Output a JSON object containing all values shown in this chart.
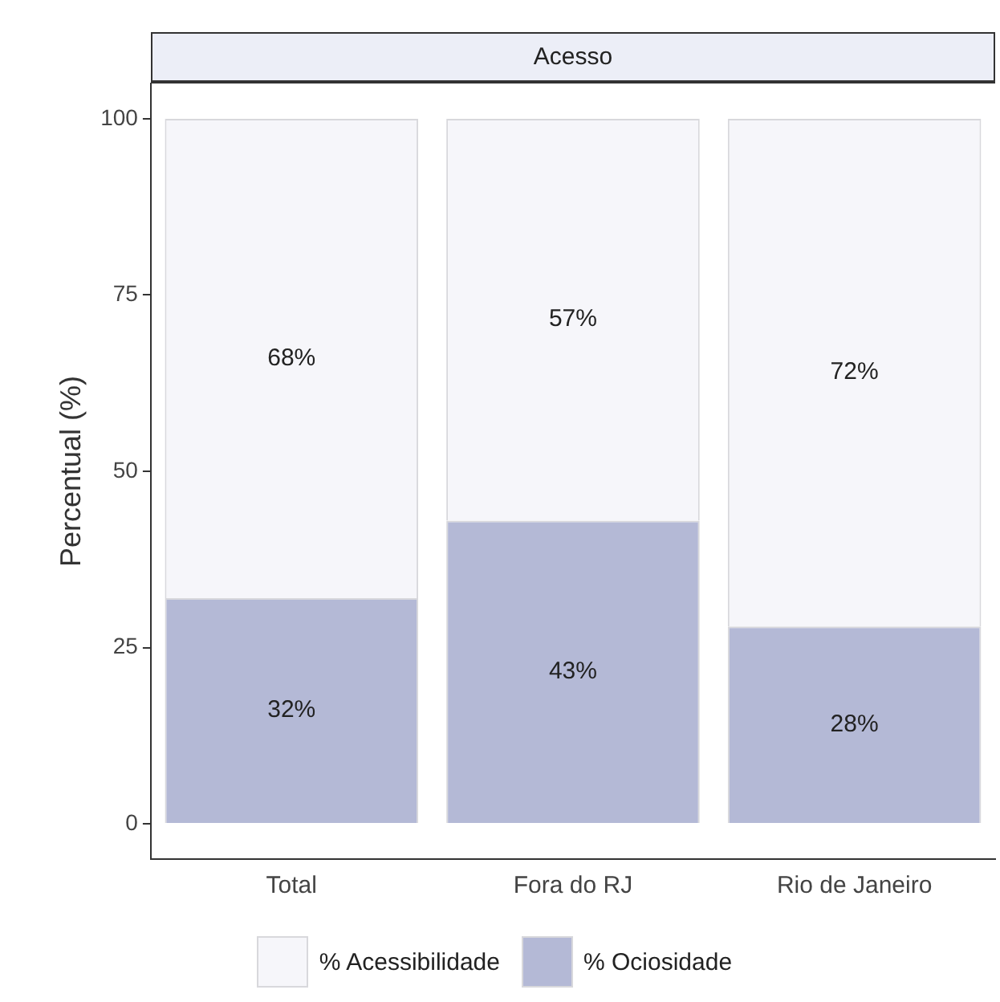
{
  "chart_data": {
    "type": "bar",
    "title": "Acesso",
    "ylabel": "Percentual (%)",
    "categories": [
      "Total",
      "Fora do RJ",
      "Rio de Janeiro"
    ],
    "stacked": true,
    "series": [
      {
        "name": "% Ociosidade",
        "color": "#b4b9d6",
        "values": [
          32,
          43,
          28
        ],
        "value_labels": [
          "32%",
          "43%",
          "28%"
        ]
      },
      {
        "name": "% Acessibilidade",
        "color": "#f6f6fa",
        "values": [
          68,
          57,
          72
        ],
        "value_labels": [
          "68%",
          "57%",
          "72%"
        ]
      }
    ],
    "ylim": [
      -5,
      105
    ],
    "yticks": [
      0,
      25,
      50,
      75,
      100
    ],
    "grid": false,
    "legend": "bottom"
  }
}
